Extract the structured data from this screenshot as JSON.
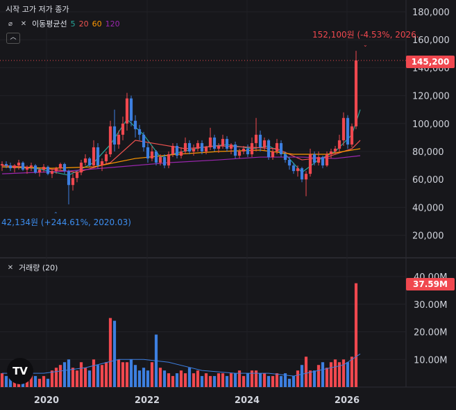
{
  "header": {
    "ohlc_label": "시작 고가 저가 종가",
    "ma_label": "이동평균선",
    "ma_periods": [
      "5",
      "20",
      "60",
      "120"
    ],
    "volume_label": "거래량 (20)"
  },
  "annotations": {
    "high_label": "152,100원 (-4.53%, 2026.",
    "low_label": "42,134원 (+244.61%, 2020.03)"
  },
  "price_tag": "145,200",
  "volume_tag": "37.59M",
  "logo": "TV",
  "colors": {
    "up": "#f0484f",
    "down": "#3d7fe0",
    "ma5": "#26a69a",
    "ma20": "#ef5350",
    "ma60": "#ff9800",
    "ma120": "#9c27b0",
    "volma": "#3d7fe0"
  },
  "chart_data": {
    "type": "candlestick",
    "x_ticks": [
      "2020",
      "2022",
      "2024",
      "2026"
    ],
    "price_axis": {
      "ticks": [
        "180,000",
        "160,000",
        "140,000",
        "120,000",
        "100,000",
        "80,000",
        "60,000",
        "40,000",
        "20,000"
      ],
      "ylim": [
        10000,
        190000
      ]
    },
    "volume_axis": {
      "ticks": [
        "40.00M",
        "30.00M",
        "20.00M",
        "10.00M"
      ],
      "ylim": [
        0,
        42
      ]
    },
    "last_price": 145200,
    "volume_last": 37.59,
    "candles": [
      [
        70000,
        73000,
        66000,
        71000
      ],
      [
        71000,
        73000,
        68000,
        70000
      ],
      [
        70000,
        72000,
        66000,
        68000
      ],
      [
        68000,
        71000,
        65000,
        70000
      ],
      [
        70000,
        74000,
        67000,
        72000
      ],
      [
        72000,
        73000,
        66000,
        67000
      ],
      [
        67000,
        70000,
        64000,
        69000
      ],
      [
        69000,
        72000,
        66000,
        70000
      ],
      [
        70000,
        71000,
        64000,
        65000
      ],
      [
        65000,
        68000,
        62000,
        67000
      ],
      [
        67000,
        71000,
        65000,
        69000
      ],
      [
        69000,
        70000,
        63000,
        64000
      ],
      [
        64000,
        67000,
        61000,
        66000
      ],
      [
        66000,
        69000,
        64000,
        68000
      ],
      [
        68000,
        72000,
        67000,
        71000
      ],
      [
        71000,
        72000,
        64000,
        66000
      ],
      [
        66000,
        67000,
        42134,
        56000
      ],
      [
        56000,
        64000,
        52000,
        61000
      ],
      [
        61000,
        66000,
        58000,
        65000
      ],
      [
        65000,
        74000,
        63000,
        72000
      ],
      [
        72000,
        78000,
        70000,
        75000
      ],
      [
        75000,
        76000,
        69000,
        70000
      ],
      [
        70000,
        88000,
        68000,
        83000
      ],
      [
        83000,
        86000,
        68000,
        70000
      ],
      [
        70000,
        75000,
        66000,
        73000
      ],
      [
        73000,
        80000,
        71000,
        78000
      ],
      [
        78000,
        102000,
        76000,
        98000
      ],
      [
        98000,
        110000,
        80000,
        85000
      ],
      [
        85000,
        95000,
        82000,
        92000
      ],
      [
        92000,
        105000,
        88000,
        100000
      ],
      [
        100000,
        122000,
        95000,
        118000
      ],
      [
        118000,
        120000,
        98000,
        102000
      ],
      [
        102000,
        106000,
        90000,
        96000
      ],
      [
        96000,
        99000,
        88000,
        92000
      ],
      [
        92000,
        94000,
        80000,
        83000
      ],
      [
        83000,
        86000,
        72000,
        75000
      ],
      [
        75000,
        84000,
        73000,
        80000
      ],
      [
        80000,
        81000,
        70000,
        72000
      ],
      [
        72000,
        78000,
        70000,
        76000
      ],
      [
        76000,
        78000,
        68000,
        70000
      ],
      [
        70000,
        80000,
        68000,
        78000
      ],
      [
        78000,
        86000,
        76000,
        84000
      ],
      [
        84000,
        86000,
        75000,
        77000
      ],
      [
        77000,
        83000,
        75000,
        80000
      ],
      [
        80000,
        90000,
        78000,
        86000
      ],
      [
        86000,
        88000,
        78000,
        80000
      ],
      [
        80000,
        85000,
        77000,
        82000
      ],
      [
        82000,
        88000,
        80000,
        86000
      ],
      [
        86000,
        88000,
        78000,
        80000
      ],
      [
        80000,
        84000,
        78000,
        83000
      ],
      [
        83000,
        97000,
        81000,
        90000
      ],
      [
        90000,
        92000,
        80000,
        82000
      ],
      [
        82000,
        86000,
        79000,
        84000
      ],
      [
        84000,
        92000,
        82000,
        89000
      ],
      [
        89000,
        91000,
        80000,
        82000
      ],
      [
        82000,
        86000,
        78000,
        85000
      ],
      [
        85000,
        87000,
        75000,
        77000
      ],
      [
        77000,
        82000,
        75000,
        80000
      ],
      [
        80000,
        84000,
        78000,
        82000
      ],
      [
        82000,
        85000,
        76000,
        78000
      ],
      [
        78000,
        90000,
        76000,
        86000
      ],
      [
        86000,
        104000,
        80000,
        92000
      ],
      [
        92000,
        95000,
        80000,
        83000
      ],
      [
        83000,
        90000,
        81000,
        88000
      ],
      [
        88000,
        89000,
        74000,
        76000
      ],
      [
        76000,
        82000,
        74000,
        80000
      ],
      [
        80000,
        89000,
        78000,
        86000
      ],
      [
        86000,
        88000,
        76000,
        78000
      ],
      [
        78000,
        80000,
        72000,
        74000
      ],
      [
        74000,
        76000,
        67000,
        70000
      ],
      [
        70000,
        72000,
        64000,
        66000
      ],
      [
        66000,
        70000,
        62000,
        68000
      ],
      [
        68000,
        69000,
        58000,
        60000
      ],
      [
        60000,
        66000,
        48000,
        64000
      ],
      [
        64000,
        82000,
        62000,
        78000
      ],
      [
        78000,
        80000,
        70000,
        72000
      ],
      [
        72000,
        80000,
        70000,
        76000
      ],
      [
        76000,
        77000,
        68000,
        70000
      ],
      [
        70000,
        80000,
        69000,
        78000
      ],
      [
        78000,
        82000,
        75000,
        80000
      ],
      [
        80000,
        84000,
        78000,
        82000
      ],
      [
        82000,
        92000,
        80000,
        88000
      ],
      [
        88000,
        108000,
        84000,
        104000
      ],
      [
        104000,
        106000,
        82000,
        85000
      ],
      [
        85000,
        100000,
        83000,
        98000
      ],
      [
        98000,
        152100,
        96000,
        145200
      ]
    ],
    "volume": [
      5,
      4,
      4,
      3,
      5,
      4,
      3,
      5,
      4,
      3,
      4,
      3,
      6,
      7,
      8,
      9,
      10,
      7,
      6,
      9,
      7,
      6,
      10,
      8,
      8,
      9,
      25,
      24,
      10,
      9,
      9,
      10,
      8,
      6,
      7,
      6,
      9,
      19,
      7,
      6,
      5,
      4,
      5,
      6,
      5,
      7,
      5,
      6,
      4,
      5,
      4,
      4,
      5,
      5,
      4,
      5,
      5,
      6,
      4,
      5,
      6,
      6,
      5,
      5,
      4,
      4,
      5,
      4,
      5,
      3,
      4,
      6,
      8,
      11,
      6,
      6,
      8,
      9,
      7,
      9,
      10,
      9,
      10,
      9,
      11,
      37.59
    ],
    "ma_lines": {
      "ma5": [
        [
          0,
          69000
        ],
        [
          8,
          68000
        ],
        [
          16,
          63000
        ],
        [
          22,
          72000
        ],
        [
          26,
          85000
        ],
        [
          30,
          103000
        ],
        [
          34,
          92000
        ],
        [
          38,
          76000
        ],
        [
          42,
          79000
        ],
        [
          48,
          83000
        ],
        [
          54,
          85000
        ],
        [
          60,
          82000
        ],
        [
          64,
          84000
        ],
        [
          68,
          78000
        ],
        [
          72,
          65000
        ],
        [
          76,
          74000
        ],
        [
          80,
          80000
        ],
        [
          84,
          92000
        ],
        [
          86,
          110000
        ]
      ],
      "ma20": [
        [
          0,
          70000
        ],
        [
          10,
          68000
        ],
        [
          18,
          65000
        ],
        [
          26,
          72000
        ],
        [
          32,
          88000
        ],
        [
          38,
          85000
        ],
        [
          44,
          82000
        ],
        [
          52,
          84000
        ],
        [
          60,
          83000
        ],
        [
          66,
          82000
        ],
        [
          72,
          74000
        ],
        [
          78,
          76000
        ],
        [
          84,
          82000
        ],
        [
          86,
          88000
        ]
      ],
      "ma60": [
        [
          0,
          69000
        ],
        [
          12,
          68000
        ],
        [
          22,
          69000
        ],
        [
          32,
          75000
        ],
        [
          42,
          78000
        ],
        [
          52,
          80000
        ],
        [
          62,
          81000
        ],
        [
          70,
          78000
        ],
        [
          78,
          78000
        ],
        [
          86,
          82000
        ]
      ],
      "ma120": [
        [
          0,
          64000
        ],
        [
          16,
          66000
        ],
        [
          28,
          69000
        ],
        [
          40,
          72000
        ],
        [
          52,
          74000
        ],
        [
          62,
          76000
        ],
        [
          72,
          76000
        ],
        [
          80,
          75000
        ],
        [
          86,
          77000
        ]
      ],
      "volma": [
        [
          0,
          5
        ],
        [
          10,
          5
        ],
        [
          20,
          7
        ],
        [
          28,
          10
        ],
        [
          34,
          10
        ],
        [
          40,
          9
        ],
        [
          48,
          6
        ],
        [
          56,
          5
        ],
        [
          64,
          5
        ],
        [
          70,
          4
        ],
        [
          76,
          6
        ],
        [
          82,
          8
        ],
        [
          86,
          12
        ]
      ]
    }
  }
}
